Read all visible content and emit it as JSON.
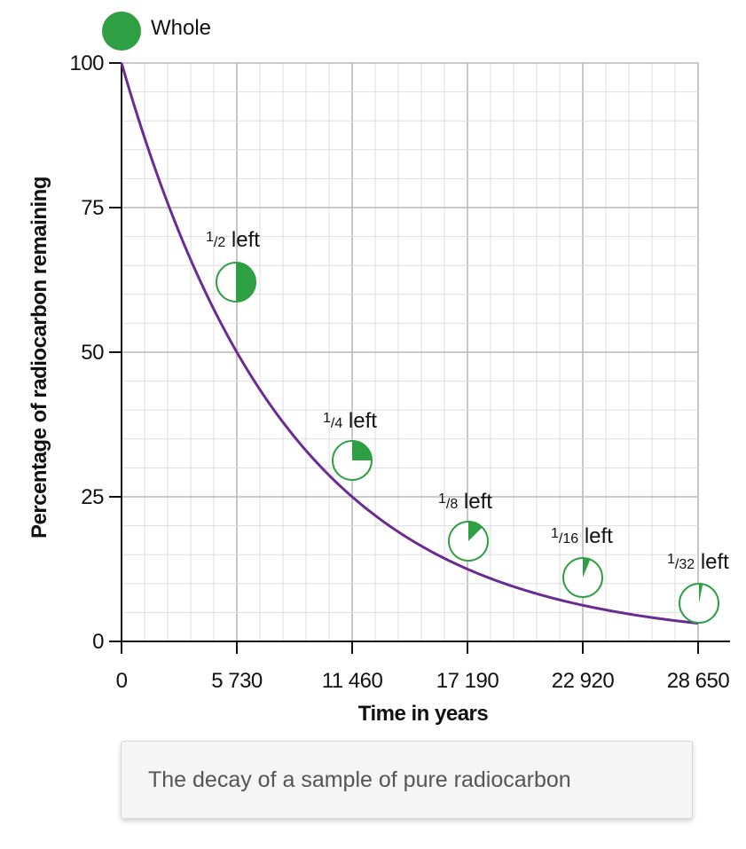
{
  "chart_data": {
    "type": "line",
    "xlabel": "Time in years",
    "ylabel": "Percentage of radiocarbon remaining",
    "xlim": [
      0,
      28650
    ],
    "ylim": [
      0,
      100
    ],
    "x_ticks": [
      "0",
      "5 730",
      "11 460",
      "17 190",
      "22 920",
      "28 650"
    ],
    "y_ticks": [
      "0",
      "25",
      "50",
      "75",
      "100"
    ],
    "half_life_years": 5730,
    "grid": true,
    "series": [
      {
        "x": [
          0,
          5730,
          11460,
          17190,
          22920,
          28650
        ],
        "values": [
          100,
          50,
          25,
          12.5,
          6.25,
          3.125
        ]
      }
    ],
    "line_color": "#6a2c91",
    "annotations": [
      {
        "label_num": "",
        "label_rest": "Whole",
        "fraction": 1.0
      },
      {
        "label_num": "1",
        "label_den": "/2",
        "label_rest": " left",
        "fraction": 0.5
      },
      {
        "label_num": "1",
        "label_den": "/4",
        "label_rest": " left",
        "fraction": 0.25
      },
      {
        "label_num": "1",
        "label_den": "/8",
        "label_rest": " left",
        "fraction": 0.125
      },
      {
        "label_num": "1",
        "label_den": "/16",
        "label_rest": " left",
        "fraction": 0.0625
      },
      {
        "label_num": "1",
        "label_den": "/32",
        "label_rest": " left",
        "fraction": 0.03125
      }
    ],
    "pie_color": "#2ea043"
  },
  "caption": "The decay of a sample of pure radiocarbon"
}
